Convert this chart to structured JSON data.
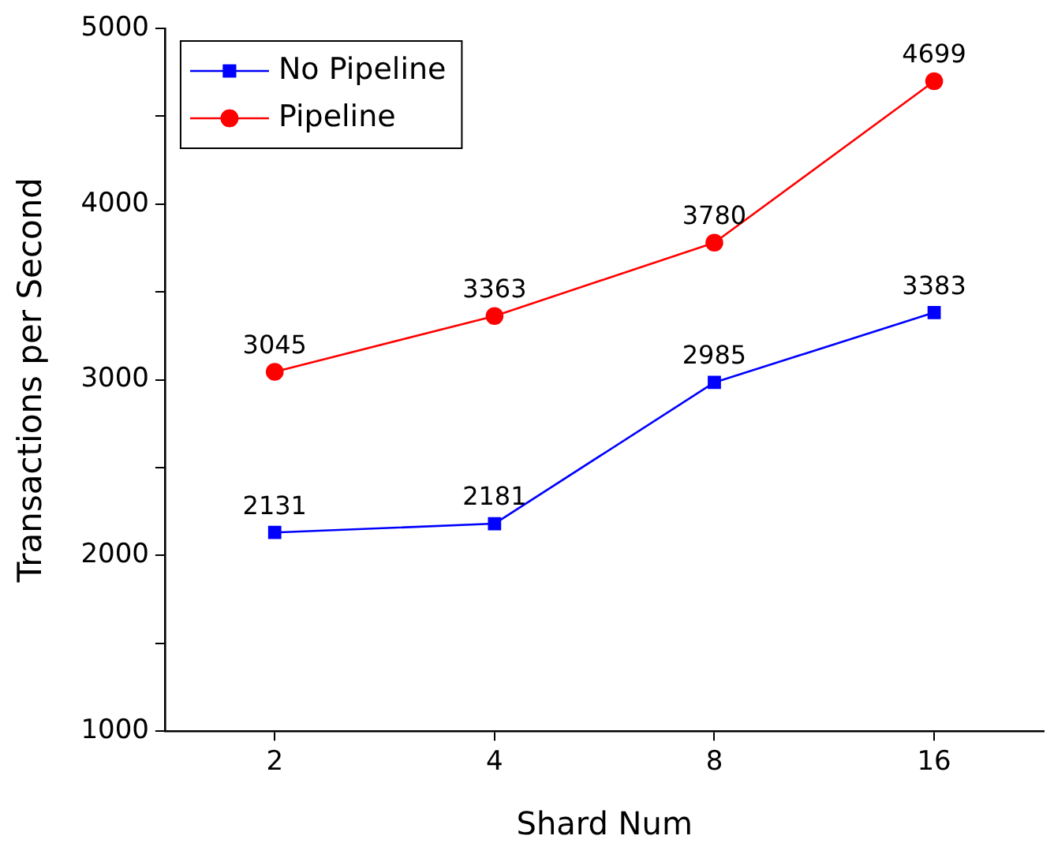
{
  "chart_data": {
    "type": "line",
    "xlabel": "Shard Num",
    "ylabel": "Transactions per Second",
    "categories": [
      "2",
      "4",
      "8",
      "16"
    ],
    "series": [
      {
        "name": "No Pipeline",
        "color": "#0000ff",
        "marker": "square",
        "values": [
          2131,
          2181,
          2985,
          3383
        ]
      },
      {
        "name": "Pipeline",
        "color": "#ff0000",
        "marker": "circle",
        "values": [
          3045,
          3363,
          3780,
          4699
        ]
      }
    ],
    "ylim": [
      1000,
      5000
    ],
    "yticks": [
      1000,
      {
        "value": 1500,
        "label": null
      },
      2000,
      {
        "value": 2500,
        "label": null
      },
      3000,
      {
        "value": 3500,
        "label": null
      },
      4000,
      {
        "value": 4500,
        "label": null
      },
      5000
    ],
    "grid": false,
    "legend": "top left",
    "data_labels": true,
    "line_style": "solid"
  }
}
